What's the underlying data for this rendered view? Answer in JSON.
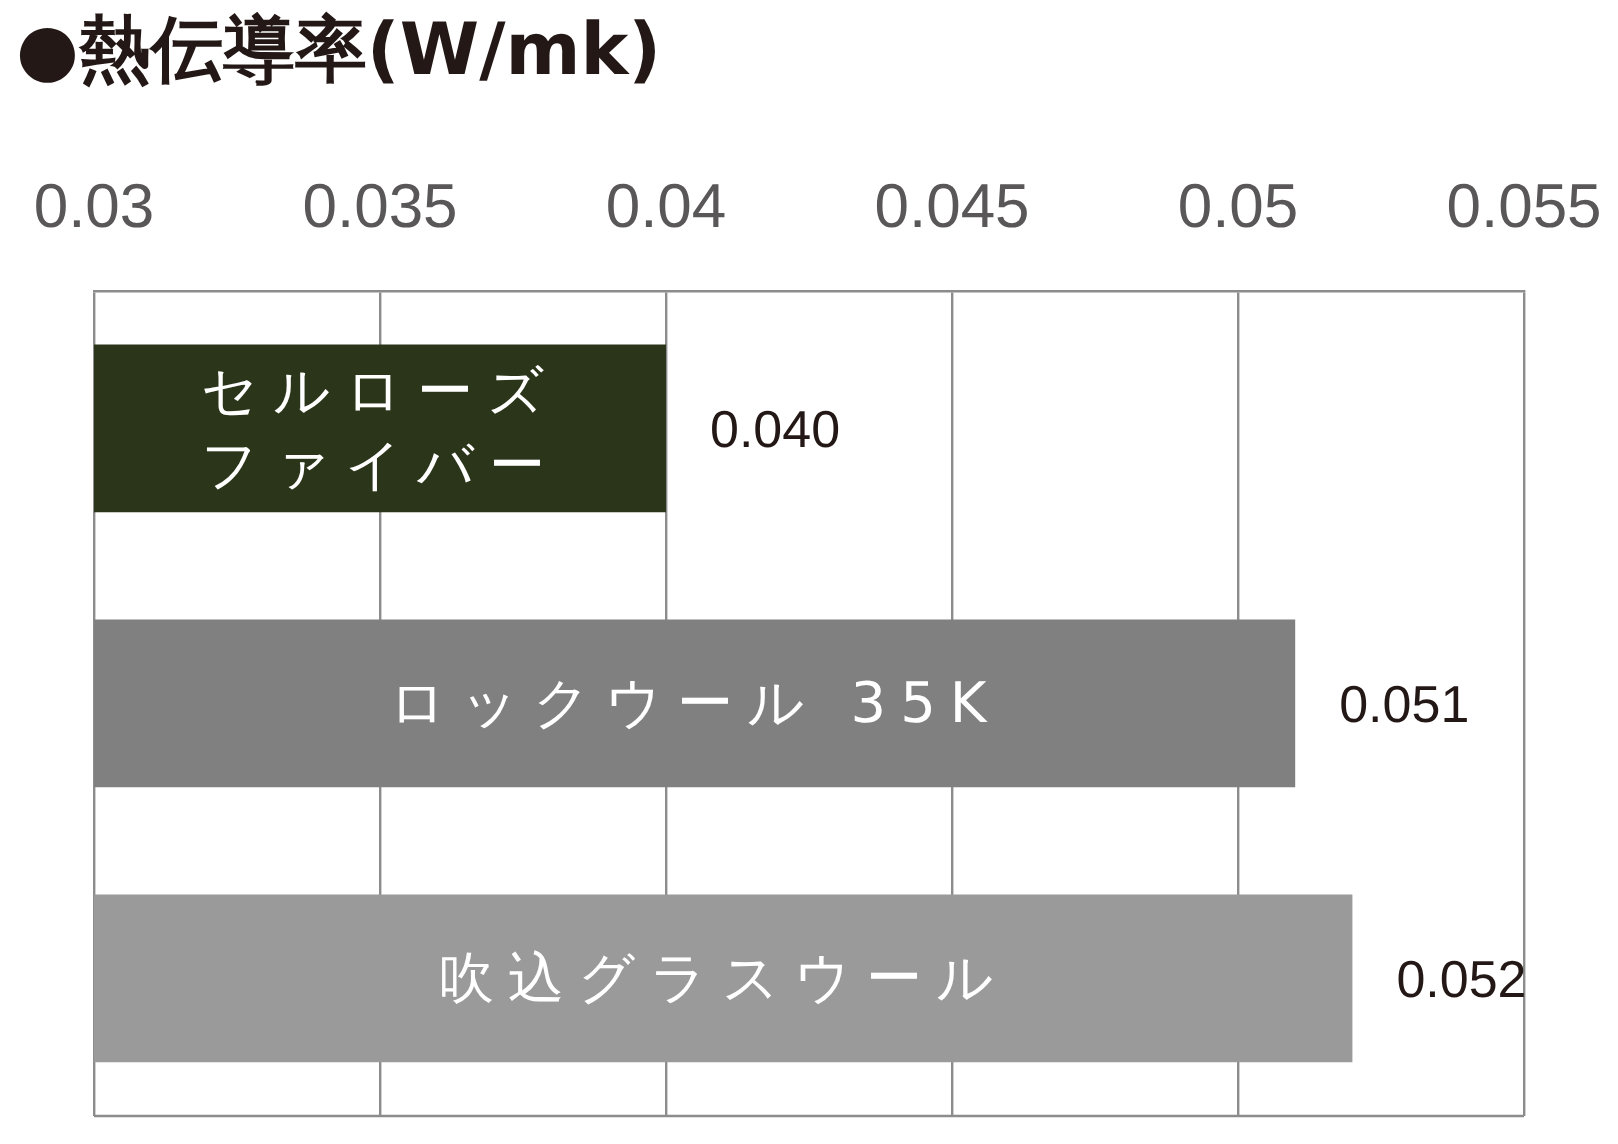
{
  "chart_data": {
    "type": "bar",
    "orientation": "horizontal",
    "title": "●熱伝導率(W/mk)",
    "categories": [
      "セルローズファイバー",
      "ロックウール 35K",
      "吹込グラスウール"
    ],
    "values": [
      0.04,
      0.051,
      0.052
    ],
    "value_labels": [
      "0.040",
      "0.051",
      "0.052"
    ],
    "colors": [
      "#2b3519",
      "#808080",
      "#9a9a9a"
    ],
    "xlim": [
      0.03,
      0.055
    ],
    "xticks": [
      0.03,
      0.035,
      0.04,
      0.045,
      0.05,
      0.055
    ],
    "grid": "x"
  }
}
